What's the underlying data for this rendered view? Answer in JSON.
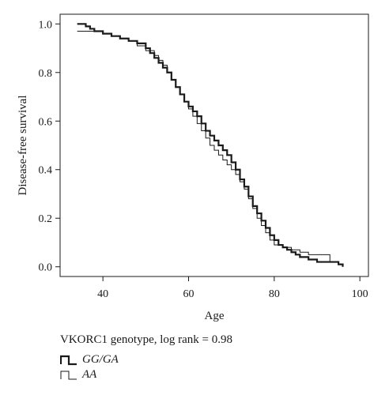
{
  "chart_data": {
    "type": "line",
    "step": true,
    "xlabel": "Age",
    "ylabel": "Disease-free survival",
    "xlim": [
      30,
      102
    ],
    "ylim": [
      -0.04,
      1.04
    ],
    "xticks": [
      40,
      60,
      80,
      100
    ],
    "yticks": [
      0.0,
      0.2,
      0.4,
      0.6,
      0.8,
      1.0
    ],
    "ytick_labels": [
      "0.0",
      "0.2",
      "0.4",
      "0.6",
      "0.8",
      "1.0"
    ],
    "legend": {
      "title": "VKORC1 genotype, log rank = 0.98",
      "placement": "bottom-left"
    },
    "series": [
      {
        "name": "GG/GA",
        "line_width": "thick",
        "x": [
          34,
          36,
          37,
          38,
          40,
          42,
          44,
          46,
          48,
          50,
          51,
          52,
          53,
          54,
          55,
          56,
          57,
          58,
          59,
          60,
          61,
          62,
          63,
          64,
          65,
          66,
          67,
          68,
          69,
          70,
          71,
          72,
          73,
          74,
          75,
          76,
          77,
          78,
          79,
          80,
          81,
          82,
          83,
          84,
          85,
          86,
          88,
          90,
          92,
          94,
          95,
          96
        ],
        "y": [
          1.0,
          0.99,
          0.98,
          0.97,
          0.96,
          0.95,
          0.94,
          0.93,
          0.92,
          0.9,
          0.88,
          0.86,
          0.84,
          0.82,
          0.8,
          0.77,
          0.74,
          0.71,
          0.68,
          0.66,
          0.64,
          0.62,
          0.59,
          0.56,
          0.54,
          0.52,
          0.5,
          0.48,
          0.46,
          0.43,
          0.4,
          0.36,
          0.33,
          0.29,
          0.25,
          0.22,
          0.19,
          0.16,
          0.13,
          0.11,
          0.09,
          0.08,
          0.07,
          0.06,
          0.05,
          0.04,
          0.03,
          0.02,
          0.02,
          0.02,
          0.01,
          0.0
        ]
      },
      {
        "name": "AA",
        "line_width": "thin",
        "x": [
          34,
          40,
          42,
          44,
          46,
          48,
          50,
          52,
          53,
          54,
          55,
          56,
          57,
          58,
          59,
          60,
          61,
          62,
          63,
          64,
          65,
          66,
          67,
          68,
          69,
          70,
          71,
          72,
          73,
          74,
          75,
          76,
          77,
          78,
          79,
          80,
          82,
          84,
          86,
          88,
          92,
          93,
          95
        ],
        "y": [
          0.97,
          0.96,
          0.95,
          0.94,
          0.93,
          0.91,
          0.89,
          0.87,
          0.85,
          0.83,
          0.8,
          0.77,
          0.74,
          0.71,
          0.68,
          0.65,
          0.62,
          0.59,
          0.56,
          0.53,
          0.5,
          0.48,
          0.46,
          0.44,
          0.42,
          0.4,
          0.38,
          0.35,
          0.32,
          0.28,
          0.24,
          0.2,
          0.17,
          0.14,
          0.11,
          0.09,
          0.08,
          0.07,
          0.06,
          0.05,
          0.05,
          0.02,
          0.01
        ]
      }
    ]
  }
}
